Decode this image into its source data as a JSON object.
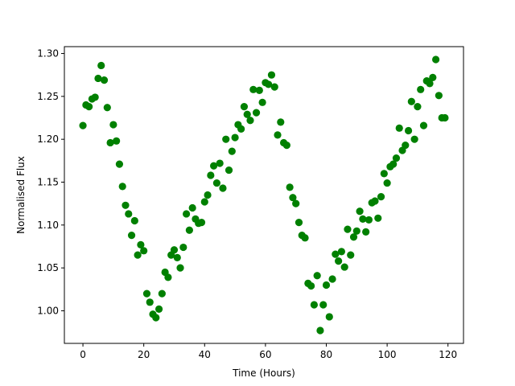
{
  "chart_data": {
    "type": "scatter",
    "title": "",
    "xlabel": "Time (Hours)",
    "ylabel": "Normalised Flux",
    "xlim": [
      -6.1,
      125.1
    ],
    "ylim": [
      0.962,
      1.308
    ],
    "xticks": [
      0,
      20,
      40,
      60,
      80,
      100,
      120
    ],
    "yticks": [
      1.0,
      1.05,
      1.1,
      1.15,
      1.2,
      1.25,
      1.3
    ],
    "xtick_labels": [
      "0",
      "20",
      "40",
      "60",
      "80",
      "100",
      "120"
    ],
    "ytick_labels": [
      "1.00",
      "1.05",
      "1.10",
      "1.15",
      "1.20",
      "1.25",
      "1.30"
    ],
    "grid": false,
    "legend": false,
    "marker_color": "#008000",
    "series": [
      {
        "points": [
          [
            0,
            1.216
          ],
          [
            1,
            1.24
          ],
          [
            2,
            1.238
          ],
          [
            3,
            1.247
          ],
          [
            4,
            1.249
          ],
          [
            5,
            1.271
          ],
          [
            6,
            1.286
          ],
          [
            7,
            1.269
          ],
          [
            8,
            1.237
          ],
          [
            9,
            1.196
          ],
          [
            10,
            1.217
          ],
          [
            11,
            1.198
          ],
          [
            12,
            1.171
          ],
          [
            13,
            1.145
          ],
          [
            14,
            1.123
          ],
          [
            15,
            1.113
          ],
          [
            16,
            1.088
          ],
          [
            17,
            1.105
          ],
          [
            18,
            1.065
          ],
          [
            19,
            1.077
          ],
          [
            20,
            1.07
          ],
          [
            21,
            1.02
          ],
          [
            22,
            1.01
          ],
          [
            23,
            0.996
          ],
          [
            24,
            0.992
          ],
          [
            25,
            1.002
          ],
          [
            26,
            1.02
          ],
          [
            27,
            1.045
          ],
          [
            28,
            1.039
          ],
          [
            29,
            1.065
          ],
          [
            30,
            1.071
          ],
          [
            31,
            1.062
          ],
          [
            32,
            1.05
          ],
          [
            33,
            1.074
          ],
          [
            34,
            1.113
          ],
          [
            35,
            1.094
          ],
          [
            36,
            1.12
          ],
          [
            37,
            1.107
          ],
          [
            38,
            1.102
          ],
          [
            39,
            1.103
          ],
          [
            40,
            1.127
          ],
          [
            41,
            1.135
          ],
          [
            42,
            1.158
          ],
          [
            43,
            1.169
          ],
          [
            44,
            1.149
          ],
          [
            45,
            1.172
          ],
          [
            46,
            1.143
          ],
          [
            47,
            1.2
          ],
          [
            48,
            1.164
          ],
          [
            49,
            1.186
          ],
          [
            50,
            1.202
          ],
          [
            51,
            1.217
          ],
          [
            52,
            1.212
          ],
          [
            53,
            1.238
          ],
          [
            54,
            1.229
          ],
          [
            55,
            1.222
          ],
          [
            56,
            1.258
          ],
          [
            57,
            1.231
          ],
          [
            58,
            1.257
          ],
          [
            59,
            1.243
          ],
          [
            60,
            1.266
          ],
          [
            61,
            1.264
          ],
          [
            62,
            1.275
          ],
          [
            63,
            1.261
          ],
          [
            64,
            1.205
          ],
          [
            65,
            1.22
          ],
          [
            66,
            1.196
          ],
          [
            67,
            1.193
          ],
          [
            68,
            1.144
          ],
          [
            69,
            1.132
          ],
          [
            70,
            1.125
          ],
          [
            71,
            1.103
          ],
          [
            72,
            1.088
          ],
          [
            73,
            1.085
          ],
          [
            74,
            1.032
          ],
          [
            75,
            1.029
          ],
          [
            76,
            1.007
          ],
          [
            77,
            1.041
          ],
          [
            78,
            0.977
          ],
          [
            79,
            1.007
          ],
          [
            80,
            1.03
          ],
          [
            81,
            0.993
          ],
          [
            82,
            1.037
          ],
          [
            83,
            1.066
          ],
          [
            84,
            1.058
          ],
          [
            85,
            1.069
          ],
          [
            86,
            1.051
          ],
          [
            87,
            1.095
          ],
          [
            88,
            1.065
          ],
          [
            89,
            1.086
          ],
          [
            90,
            1.093
          ],
          [
            91,
            1.116
          ],
          [
            92,
            1.107
          ],
          [
            93,
            1.092
          ],
          [
            94,
            1.106
          ],
          [
            95,
            1.126
          ],
          [
            96,
            1.128
          ],
          [
            97,
            1.108
          ],
          [
            98,
            1.133
          ],
          [
            99,
            1.16
          ],
          [
            100,
            1.149
          ],
          [
            101,
            1.168
          ],
          [
            102,
            1.171
          ],
          [
            103,
            1.178
          ],
          [
            104,
            1.213
          ],
          [
            105,
            1.187
          ],
          [
            106,
            1.193
          ],
          [
            107,
            1.21
          ],
          [
            108,
            1.244
          ],
          [
            109,
            1.2
          ],
          [
            110,
            1.238
          ],
          [
            111,
            1.258
          ],
          [
            112,
            1.216
          ],
          [
            113,
            1.268
          ],
          [
            114,
            1.265
          ],
          [
            115,
            1.272
          ],
          [
            116,
            1.293
          ],
          [
            117,
            1.251
          ],
          [
            118,
            1.225
          ],
          [
            119,
            1.225
          ]
        ]
      }
    ]
  }
}
